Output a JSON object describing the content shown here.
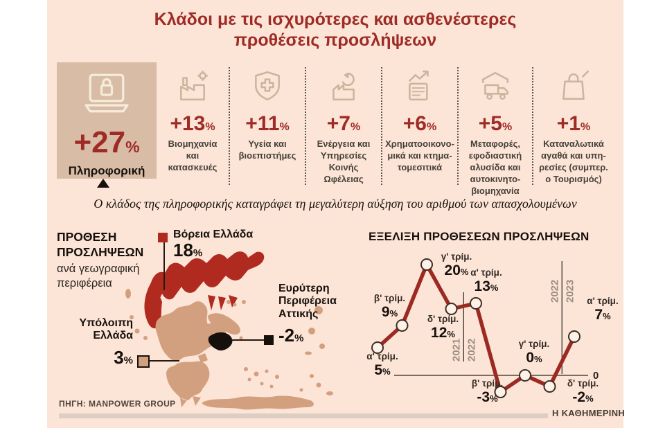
{
  "title": {
    "line1": "Κλάδοι με τις ισχυρότερες και ασθενέστερες",
    "line2": "προθέσεις προσλήψεων"
  },
  "sectors": {
    "items": [
      {
        "icon": "laptop-lock-icon",
        "value": "+27",
        "pct": "%",
        "label": "Πληροφορική"
      },
      {
        "icon": "factory-icon",
        "value": "+13",
        "pct": "%",
        "label": "Βιομηχανία\nκαι\nκατασκευές"
      },
      {
        "icon": "health-shield-icon",
        "value": "+11",
        "pct": "%",
        "label": "Υγεία και\nβιοεπιστήμες"
      },
      {
        "icon": "energy-icon",
        "value": "+7",
        "pct": "%",
        "label": "Ενέργεια και\nΥπηρεσίες\nΚοινής\nΩφέλειας"
      },
      {
        "icon": "finance-chart-icon",
        "value": "+6",
        "pct": "%",
        "label": "Χρηματοοικονο-\nμικά και κτημα-\nτομεσιτικά"
      },
      {
        "icon": "truck-icon",
        "value": "+5",
        "pct": "%",
        "label": "Μεταφορές,\nεφοδιαστική\nαλυσίδα και\nαυτοκινητο-\nβιομηχανία"
      },
      {
        "icon": "shopping-bag-icon",
        "value": "+1",
        "pct": "%",
        "label": "Καταναλωτικά\nαγαθά και υπη-\nρεσίες (συμπερ.\nο Τουρισμός)"
      }
    ]
  },
  "subtitle": "Ο κλάδος της πληροφορικής καταγράφει τη μεγαλύτερη αύξηση του αριθμού των απασχολουμένων",
  "map": {
    "heading_bold": "ΠΡΟΘΕΣΗ\nΠΡΟΣΛΗΨΕΩΝ",
    "heading_rest": "ανά γεωγραφική\nπεριφέρεια",
    "regions": [
      {
        "name": "Βόρεια Ελλάδα",
        "value": "18",
        "pct": "%"
      },
      {
        "name": "Υπόλοιπη\nΕλλάδα",
        "value": "3",
        "pct": "%"
      },
      {
        "name": "Ευρύτερη\nΠεριφέρεια\nΑττικής",
        "value": "-2",
        "pct": "%"
      }
    ],
    "source": "ΠΗΓΗ: MANPOWER GROUP"
  },
  "chart_title": "ΕΞΕΛΙΞΗ ΠΡΟΘΕΣΕΩΝ ΠΡΟΣΛΗΨΕΩΝ",
  "chart_data": {
    "type": "line",
    "title": "ΕΞΕΛΙΞΗ ΠΡΟΘΕΣΕΩΝ ΠΡΟΣΛΗΨΕΩΝ",
    "x": [
      "α' τρίμ.",
      "β' τρίμ.",
      "γ' τρίμ.",
      "δ' τρίμ.",
      "α' τρίμ.",
      "β' τρίμ.",
      "γ' τρίμ.",
      "δ' τρίμ.",
      "α' τρίμ."
    ],
    "x_years": [
      "2021",
      "2021",
      "2021",
      "2021",
      "2022",
      "2022",
      "2022",
      "2022",
      "2023"
    ],
    "values": [
      5,
      9,
      20,
      12,
      13,
      -3,
      0,
      -2,
      7
    ],
    "percent_sign": "%",
    "year_dividers": [
      {
        "after_index": 3,
        "left": "2021",
        "right": "2022"
      },
      {
        "after_index": 7,
        "left": "2022",
        "right": "2023"
      }
    ],
    "baseline_label": "0",
    "ylim": [
      -5,
      22
    ],
    "grid": false,
    "legend": false
  },
  "footer": {
    "brand": "Η ΚΑΘΗΜΕΡΙΝΗ"
  },
  "colors": {
    "background": "#fce4d6",
    "panel_highlight": "#d9bca6",
    "accent_red": "#9e2b26",
    "map_red": "#b02a1f",
    "map_tan": "#d2a07e",
    "map_black": "#16100c",
    "line": "#9b2a23",
    "footer_bar": "#ddcec3",
    "icon_tan": "#cdb39e",
    "icon_cream": "#f6ecdc"
  }
}
